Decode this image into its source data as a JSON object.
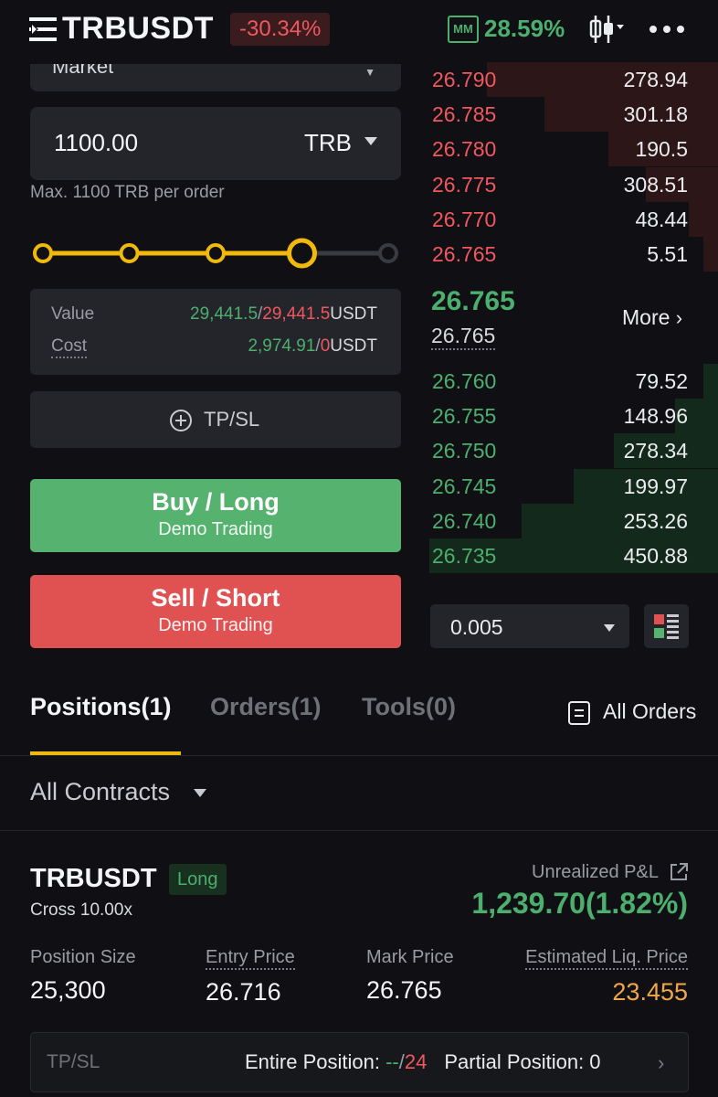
{
  "header": {
    "symbol": "TRBUSDT",
    "change": "-30.34%",
    "mm_label": "MM",
    "mm_value": "28.59%"
  },
  "order_form": {
    "order_type": "Market",
    "quantity": "1100.00",
    "quantity_unit": "TRB",
    "max_text": "Max. 1100 TRB per order",
    "slider_level_fraction": 0.75,
    "value_label": "Value",
    "value_available": "29,441.5",
    "value_max": "29,441.5",
    "value_unit": "USDT",
    "cost_label": "Cost",
    "cost_available": "2,974.91",
    "cost_max": "0",
    "cost_unit": "USDT",
    "tpsl_label": "TP/SL",
    "buy_label": "Buy / Long",
    "buy_sub": "Demo Trading",
    "sell_label": "Sell / Short",
    "sell_sub": "Demo Trading"
  },
  "orderbook": {
    "asks": [
      {
        "price": "26.790",
        "qty": "278.94",
        "depth": 0.8
      },
      {
        "price": "26.785",
        "qty": "301.18",
        "depth": 0.6
      },
      {
        "price": "26.780",
        "qty": "190.5",
        "depth": 0.38
      },
      {
        "price": "26.775",
        "qty": "308.51",
        "depth": 0.25
      },
      {
        "price": "26.770",
        "qty": "48.44",
        "depth": 0.1
      },
      {
        "price": "26.765",
        "qty": "5.51",
        "depth": 0.05
      }
    ],
    "last_price": "26.765",
    "mark_price": "26.765",
    "more_label": "More",
    "bids": [
      {
        "price": "26.760",
        "qty": "79.52",
        "depth": 0.05
      },
      {
        "price": "26.755",
        "qty": "148.96",
        "depth": 0.15
      },
      {
        "price": "26.750",
        "qty": "278.34",
        "depth": 0.36
      },
      {
        "price": "26.745",
        "qty": "199.97",
        "depth": 0.5
      },
      {
        "price": "26.740",
        "qty": "253.26",
        "depth": 0.68
      },
      {
        "price": "26.735",
        "qty": "450.88",
        "depth": 1.0
      }
    ],
    "precision": "0.005"
  },
  "tabs": {
    "positions": "Positions(1)",
    "orders": "Orders(1)",
    "tools": "Tools(0)",
    "all_orders": "All Orders"
  },
  "filter": {
    "contracts": "All Contracts"
  },
  "position": {
    "symbol": "TRBUSDT",
    "side": "Long",
    "mode": "Cross 10.00x",
    "upnl_label": "Unrealized P&L",
    "upnl_value": "1,239.70(1.82%)",
    "size_label": "Position Size",
    "size_value": "25,300",
    "entry_label": "Entry Price",
    "entry_value": "26.716",
    "mark_label": "Mark Price",
    "mark_value": "26.765",
    "liq_label": "Estimated Liq. Price",
    "liq_value": "23.455",
    "tpsl_label": "TP/SL",
    "entire_label": "Entire Position: ",
    "entire_tp": "--",
    "entire_sep": "/",
    "entire_sl": "24",
    "partial_label": "Partial Position: 0"
  },
  "colors": {
    "buy": "#56b26f",
    "sell": "#e05252",
    "accent": "#f0b90b",
    "liq": "#f0a74a"
  }
}
